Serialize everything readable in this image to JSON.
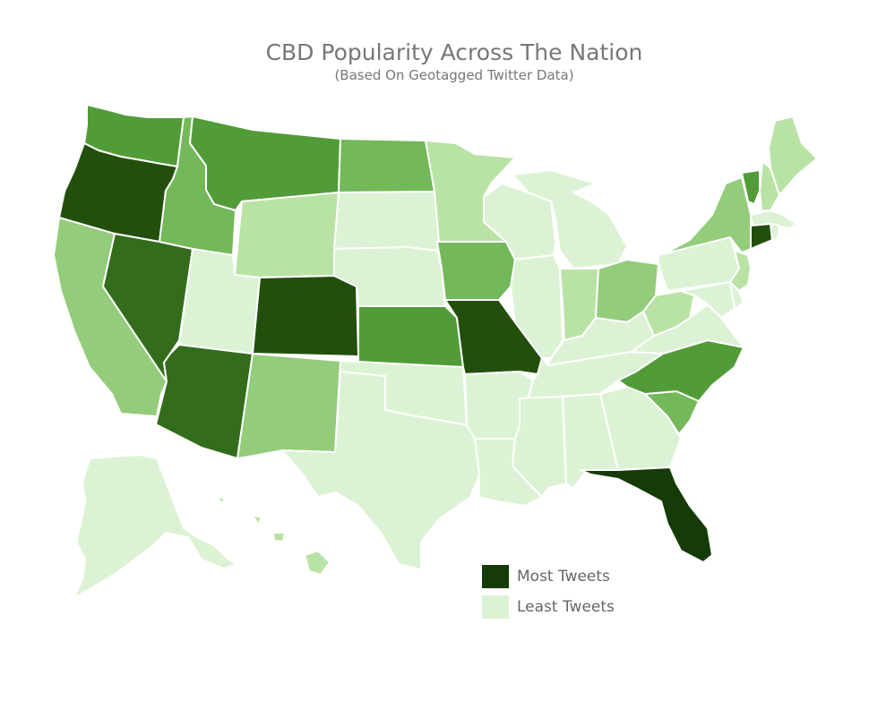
{
  "title": "CBD Popularity Across The Nation",
  "subtitle": "(Based On Geotagged Twitter Data)",
  "legend": {
    "most_label": "Most Tweets",
    "least_label": "Least Tweets",
    "most_color": "#153b06",
    "least_color": "#dcf2d4"
  },
  "colors": {
    "level_1": "#dcf2d4",
    "level_2": "#b9e3a5",
    "level_3": "#93cc7a",
    "level_4": "#73b859",
    "level_5": "#519c38",
    "level_6": "#336d1c",
    "level_7": "#234f0d",
    "level_8": "#153b06"
  },
  "states": [
    {
      "name": "WA",
      "level": 5
    },
    {
      "name": "OR",
      "level": 7
    },
    {
      "name": "CA",
      "level": 3
    },
    {
      "name": "NV",
      "level": 6
    },
    {
      "name": "ID",
      "level": 4
    },
    {
      "name": "MT",
      "level": 5
    },
    {
      "name": "WY",
      "level": 2
    },
    {
      "name": "UT",
      "level": 1
    },
    {
      "name": "AZ",
      "level": 6
    },
    {
      "name": "CO",
      "level": 7
    },
    {
      "name": "NM",
      "level": 3
    },
    {
      "name": "ND",
      "level": 4
    },
    {
      "name": "SD",
      "level": 1
    },
    {
      "name": "NE",
      "level": 1
    },
    {
      "name": "KS",
      "level": 5
    },
    {
      "name": "OK",
      "level": 1
    },
    {
      "name": "TX",
      "level": 1
    },
    {
      "name": "MN",
      "level": 2
    },
    {
      "name": "IA",
      "level": 4
    },
    {
      "name": "MO",
      "level": 7
    },
    {
      "name": "AR",
      "level": 1
    },
    {
      "name": "LA",
      "level": 1
    },
    {
      "name": "WI",
      "level": 1
    },
    {
      "name": "IL",
      "level": 1
    },
    {
      "name": "MI",
      "level": 1
    },
    {
      "name": "IN",
      "level": 2
    },
    {
      "name": "OH",
      "level": 3
    },
    {
      "name": "KY",
      "level": 1
    },
    {
      "name": "TN",
      "level": 1
    },
    {
      "name": "MS",
      "level": 1
    },
    {
      "name": "AL",
      "level": 1
    },
    {
      "name": "GA",
      "level": 1
    },
    {
      "name": "FL",
      "level": 8
    },
    {
      "name": "SC",
      "level": 4
    },
    {
      "name": "NC",
      "level": 5
    },
    {
      "name": "VA",
      "level": 1
    },
    {
      "name": "WV",
      "level": 2
    },
    {
      "name": "PA",
      "level": 1
    },
    {
      "name": "NY",
      "level": 3
    },
    {
      "name": "VT",
      "level": 5
    },
    {
      "name": "NH",
      "level": 2
    },
    {
      "name": "ME",
      "level": 2
    },
    {
      "name": "MA",
      "level": 1
    },
    {
      "name": "CT",
      "level": 7
    },
    {
      "name": "RI",
      "level": 1
    },
    {
      "name": "NJ",
      "level": 2
    },
    {
      "name": "DE",
      "level": 1
    },
    {
      "name": "MD",
      "level": 1
    },
    {
      "name": "AK",
      "level": 1
    },
    {
      "name": "HI",
      "level": 2
    }
  ]
}
